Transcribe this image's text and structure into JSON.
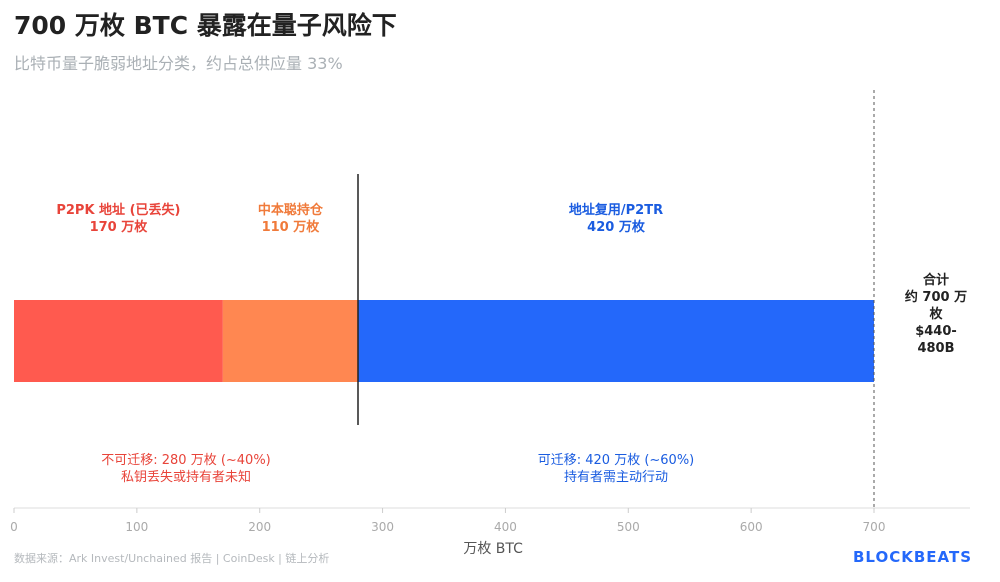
{
  "chart_data": {
    "type": "bar",
    "orientation": "horizontal-stacked",
    "title": "700 万枚 BTC 暴露在量子风险下",
    "subtitle": "比特币量子脆弱地址分类，约占总供应量 33%",
    "xlabel": "万枚 BTC",
    "xlim": [
      0,
      780
    ],
    "xticks": [
      0,
      100,
      200,
      300,
      400,
      500,
      600,
      700
    ],
    "grid": false,
    "segments": [
      {
        "name": "P2PK 地址 (已丢失)",
        "value_label": "170 万枚",
        "start": 0,
        "value": 170,
        "color": "#ff5a4f",
        "text_color": "#e8443a"
      },
      {
        "name": "中本聪持仓",
        "value_label": "110 万枚",
        "start": 170,
        "value": 110,
        "color": "#ff8751",
        "text_color": "#f07a3a"
      },
      {
        "name": "地址复用/P2TR",
        "value_label": "420 万枚",
        "start": 280,
        "value": 420,
        "color": "#2468fa",
        "text_color": "#1a5ce0"
      }
    ],
    "divider_at": 280,
    "total_line_at": 700,
    "total_label": [
      "合计",
      "约 700 万枚",
      "$440-480B"
    ],
    "annotations": [
      {
        "lines": [
          "不可迁移: 280 万枚 (~40%)",
          "私钥丢失或持有者未知"
        ],
        "center": 140,
        "color": "#e8443a"
      },
      {
        "lines": [
          "可迁移: 420 万枚 (~60%)",
          "持有者需主动行动"
        ],
        "center": 490,
        "color": "#1a5ce0"
      }
    ]
  },
  "footer": {
    "source": "数据来源：Ark Invest/Unchained 报告 | CoinDesk | 链上分析",
    "logo": "BLOCKBEATS"
  }
}
